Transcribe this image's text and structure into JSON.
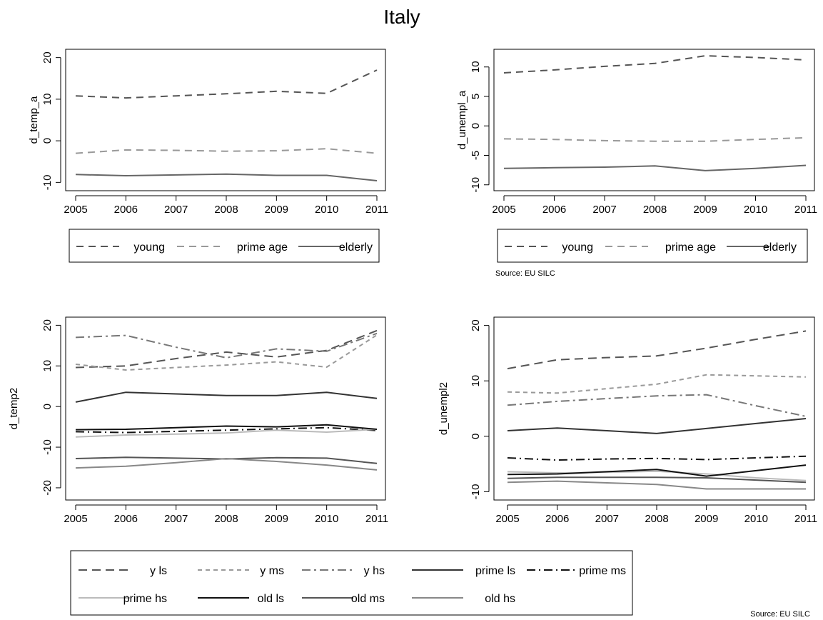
{
  "title": "Italy",
  "sources": [
    "Source: EU SILC",
    "Source: EU SILC"
  ],
  "chart_data": [
    {
      "type": "line",
      "title": "",
      "xlabel": "",
      "ylabel": "d_temp_a",
      "x": [
        2005,
        2006,
        2007,
        2008,
        2009,
        2010,
        2011
      ],
      "xlim": [
        2005,
        2011
      ],
      "ylim": [
        -12,
        22
      ],
      "yticks": [
        -10,
        0,
        10,
        20
      ],
      "grid": false,
      "legend_position": "below",
      "series": [
        {
          "name": "young",
          "values": [
            10.8,
            10.3,
            10.8,
            11.3,
            11.9,
            11.4,
            17.0
          ],
          "color": "#555555",
          "dash": "10,7"
        },
        {
          "name": "prime age",
          "values": [
            -3.0,
            -2.2,
            -2.3,
            -2.5,
            -2.4,
            -1.9,
            -3.0
          ],
          "color": "#999999",
          "dash": "10,7"
        },
        {
          "name": "elderly",
          "values": [
            -8.1,
            -8.4,
            -8.2,
            -8.0,
            -8.3,
            -8.3,
            -9.6
          ],
          "color": "#666666",
          "dash": ""
        }
      ]
    },
    {
      "type": "line",
      "title": "",
      "xlabel": "",
      "ylabel": "d_unempl_a",
      "x": [
        2005,
        2006,
        2007,
        2008,
        2009,
        2010,
        2011
      ],
      "xlim": [
        2005,
        2011
      ],
      "ylim": [
        -11,
        13
      ],
      "yticks": [
        -10,
        -5,
        0,
        5,
        10
      ],
      "grid": false,
      "legend_position": "below",
      "series": [
        {
          "name": "young",
          "values": [
            9.0,
            9.5,
            10.1,
            10.6,
            11.9,
            11.6,
            11.2
          ],
          "color": "#555555",
          "dash": "10,7"
        },
        {
          "name": "prime age",
          "values": [
            -2.2,
            -2.3,
            -2.5,
            -2.6,
            -2.6,
            -2.3,
            -2.0
          ],
          "color": "#999999",
          "dash": "10,7"
        },
        {
          "name": "elderly",
          "values": [
            -7.2,
            -7.1,
            -7.0,
            -6.8,
            -7.6,
            -7.2,
            -6.7
          ],
          "color": "#666666",
          "dash": ""
        }
      ]
    },
    {
      "type": "line",
      "title": "",
      "xlabel": "",
      "ylabel": "d_temp2",
      "x": [
        2005,
        2006,
        2007,
        2008,
        2009,
        2010,
        2011
      ],
      "xlim": [
        2005,
        2011
      ],
      "ylim": [
        -23,
        22
      ],
      "yticks": [
        -20,
        -10,
        0,
        10,
        20
      ],
      "grid": false,
      "legend_position": "below",
      "series": [
        {
          "name": "y ls",
          "values": [
            9.6,
            10.0,
            11.8,
            13.4,
            12.2,
            13.8,
            18.7
          ],
          "color": "#555555",
          "dash": "12,7"
        },
        {
          "name": "y ms",
          "values": [
            10.4,
            9.0,
            9.6,
            10.2,
            11.0,
            9.7,
            17.6
          ],
          "color": "#999999",
          "dash": "6,5"
        },
        {
          "name": "y hs",
          "values": [
            17.0,
            17.5,
            14.6,
            12.0,
            14.2,
            13.6,
            18.0
          ],
          "color": "#777777",
          "dash": "12,5,3,5"
        },
        {
          "name": "prime ls",
          "values": [
            1.1,
            3.5,
            3.1,
            2.7,
            2.7,
            3.5,
            2.0
          ],
          "color": "#333333",
          "dash": ""
        },
        {
          "name": "prime ms",
          "values": [
            -6.2,
            -6.4,
            -6.1,
            -5.8,
            -5.5,
            -5.2,
            -5.9
          ],
          "color": "#111111",
          "dash": "12,5,2,5"
        },
        {
          "name": "prime hs",
          "values": [
            -7.5,
            -7.0,
            -6.8,
            -6.5,
            -5.8,
            -6.3,
            -5.6
          ],
          "color": "#bbbbbb",
          "dash": ""
        },
        {
          "name": "old ls",
          "values": [
            -5.7,
            -5.6,
            -5.2,
            -4.8,
            -5.0,
            -4.5,
            -5.6
          ],
          "color": "#111111",
          "dash": ""
        },
        {
          "name": "old ms",
          "values": [
            -12.8,
            -12.5,
            -12.7,
            -12.9,
            -12.6,
            -12.7,
            -14.0
          ],
          "color": "#555555",
          "dash": ""
        },
        {
          "name": "old hs",
          "values": [
            -15.1,
            -14.7,
            -13.8,
            -12.8,
            -13.5,
            -14.4,
            -15.6
          ],
          "color": "#888888",
          "dash": ""
        }
      ]
    },
    {
      "type": "line",
      "title": "",
      "xlabel": "",
      "ylabel": "d_unempl2",
      "x": [
        2005,
        2006,
        2007,
        2008,
        2009,
        2010,
        2011
      ],
      "xlim": [
        2005,
        2011
      ],
      "ylim": [
        -11.5,
        21.5
      ],
      "yticks": [
        -10,
        0,
        10,
        20
      ],
      "grid": false,
      "legend_position": "below",
      "series": [
        {
          "name": "y ls",
          "values": [
            12.2,
            13.8,
            14.2,
            14.5,
            15.9,
            17.5,
            19.0
          ],
          "color": "#555555",
          "dash": "12,7"
        },
        {
          "name": "y ms",
          "values": [
            8.0,
            7.8,
            8.6,
            9.4,
            11.1,
            10.9,
            10.7
          ],
          "color": "#999999",
          "dash": "6,5"
        },
        {
          "name": "y hs",
          "values": [
            5.6,
            6.3,
            6.8,
            7.3,
            7.5,
            5.5,
            3.6
          ],
          "color": "#777777",
          "dash": "12,5,3,5"
        },
        {
          "name": "prime ls",
          "values": [
            1.0,
            1.5,
            1.0,
            0.5,
            1.4,
            2.3,
            3.2
          ],
          "color": "#333333",
          "dash": ""
        },
        {
          "name": "prime ms",
          "values": [
            -3.9,
            -4.3,
            -4.1,
            -4.0,
            -4.2,
            -3.9,
            -3.6
          ],
          "color": "#111111",
          "dash": "12,5,2,5"
        },
        {
          "name": "prime hs",
          "values": [
            -6.4,
            -6.6,
            -6.5,
            -6.3,
            -6.8,
            -7.5,
            -8.0
          ],
          "color": "#bbbbbb",
          "dash": ""
        },
        {
          "name": "old ls",
          "values": [
            -6.9,
            -6.8,
            -6.4,
            -6.0,
            -7.2,
            -6.2,
            -5.2
          ],
          "color": "#111111",
          "dash": ""
        },
        {
          "name": "old ms",
          "values": [
            -7.6,
            -7.4,
            -7.4,
            -7.4,
            -7.5,
            -7.9,
            -8.3
          ],
          "color": "#555555",
          "dash": ""
        },
        {
          "name": "old hs",
          "values": [
            -8.3,
            -8.1,
            -8.4,
            -8.7,
            -9.5,
            -9.5,
            -9.5
          ],
          "color": "#888888",
          "dash": ""
        }
      ]
    }
  ]
}
